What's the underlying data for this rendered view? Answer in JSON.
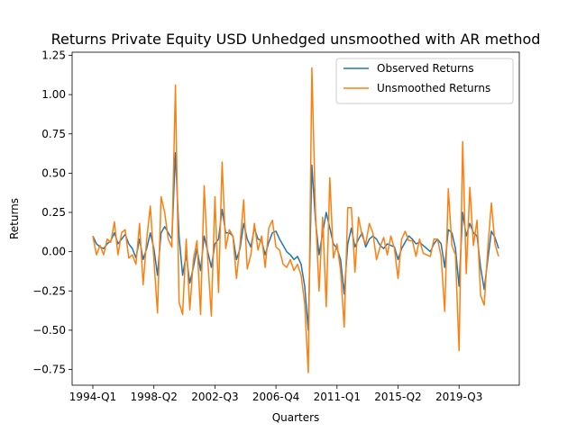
{
  "chart_data": {
    "type": "line",
    "title": "Returns Private Equity USD Unhedged unsmoothed with AR method",
    "xlabel": "Quarters",
    "ylabel": "Returns",
    "x_tick_labels": [
      "1994-Q1",
      "1998-Q2",
      "2002-Q3",
      "2006-Q4",
      "2011-Q1",
      "2015-Q2",
      "2019-Q3"
    ],
    "x_tick_index_step": 17,
    "n_points": 114,
    "ylim": [
      -0.85,
      1.27
    ],
    "y_ticks": [
      -0.75,
      -0.5,
      -0.25,
      0.0,
      0.25,
      0.5,
      0.75,
      1.0,
      1.25
    ],
    "y_tick_labels": [
      "−0.75",
      "−0.50",
      "−0.25",
      "0.00",
      "0.25",
      "0.50",
      "0.75",
      "1.00",
      "1.25"
    ],
    "legend_position": "top-right",
    "grid": false,
    "series": [
      {
        "name": "Observed Returns",
        "color": "#1f77b4",
        "values": [
          0.1,
          0.05,
          0.03,
          0.02,
          0.05,
          0.07,
          0.12,
          0.05,
          0.08,
          0.11,
          0.05,
          0.02,
          -0.04,
          0.08,
          -0.05,
          0.02,
          0.12,
          0.02,
          -0.15,
          0.12,
          0.16,
          0.12,
          0.08,
          0.63,
          0.1,
          -0.15,
          -0.02,
          -0.2,
          -0.1,
          0.02,
          -0.12,
          0.1,
          0.0,
          -0.1,
          0.05,
          0.08,
          0.27,
          0.12,
          0.12,
          0.1,
          -0.05,
          0.02,
          0.18,
          0.08,
          0.03,
          0.15,
          0.08,
          0.07,
          -0.02,
          0.06,
          0.12,
          0.13,
          0.08,
          0.04,
          0.0,
          -0.02,
          -0.05,
          -0.03,
          -0.08,
          -0.22,
          -0.5,
          0.55,
          0.2,
          -0.02,
          0.12,
          0.25,
          0.15,
          0.05,
          0.02,
          -0.05,
          -0.27,
          0.05,
          0.15,
          0.03,
          0.08,
          0.12,
          0.03,
          0.08,
          0.1,
          0.08,
          0.04,
          0.02,
          0.05,
          0.04,
          0.03,
          -0.05,
          0.02,
          0.06,
          0.1,
          0.08,
          0.05,
          0.06,
          0.04,
          0.02,
          0.0,
          0.05,
          0.08,
          0.05,
          -0.1,
          0.14,
          0.12,
          0.02,
          -0.22,
          0.25,
          0.1,
          0.18,
          0.12,
          0.1,
          -0.1,
          -0.24,
          -0.05,
          0.13,
          0.09,
          0.02
        ]
      },
      {
        "name": "Unsmoothed Returns",
        "color": "#ff7f0e",
        "values": [
          0.1,
          -0.02,
          0.04,
          -0.02,
          0.08,
          0.06,
          0.19,
          -0.02,
          0.12,
          0.14,
          -0.04,
          -0.02,
          -0.08,
          0.18,
          -0.21,
          0.08,
          0.29,
          -0.05,
          -0.39,
          0.35,
          0.25,
          0.08,
          0.03,
          1.06,
          -0.32,
          -0.4,
          0.08,
          -0.37,
          -0.05,
          0.07,
          -0.4,
          0.42,
          -0.05,
          -0.41,
          0.35,
          -0.26,
          0.57,
          0.02,
          0.14,
          0.1,
          -0.17,
          0.05,
          0.33,
          -0.11,
          -0.02,
          0.18,
          0.01,
          0.1,
          -0.1,
          0.15,
          0.2,
          0.03,
          0.01,
          -0.08,
          -0.1,
          -0.05,
          -0.12,
          -0.08,
          -0.15,
          -0.33,
          -0.77,
          1.17,
          0.25,
          -0.25,
          0.22,
          -0.35,
          0.47,
          -0.04,
          0.05,
          -0.12,
          -0.48,
          0.28,
          0.28,
          -0.13,
          0.22,
          0.1,
          0.05,
          0.18,
          0.12,
          -0.05,
          0.03,
          0.09,
          -0.02,
          0.1,
          0.02,
          -0.17,
          0.08,
          0.13,
          0.07,
          0.07,
          -0.03,
          0.08,
          -0.01,
          -0.02,
          -0.03,
          0.08,
          0.08,
          -0.03,
          -0.38,
          0.4,
          0.04,
          -0.02,
          -0.63,
          0.7,
          -0.14,
          0.41,
          0.04,
          0.2,
          -0.28,
          -0.34,
          0.02,
          0.31,
          0.05,
          -0.03
        ]
      }
    ]
  }
}
